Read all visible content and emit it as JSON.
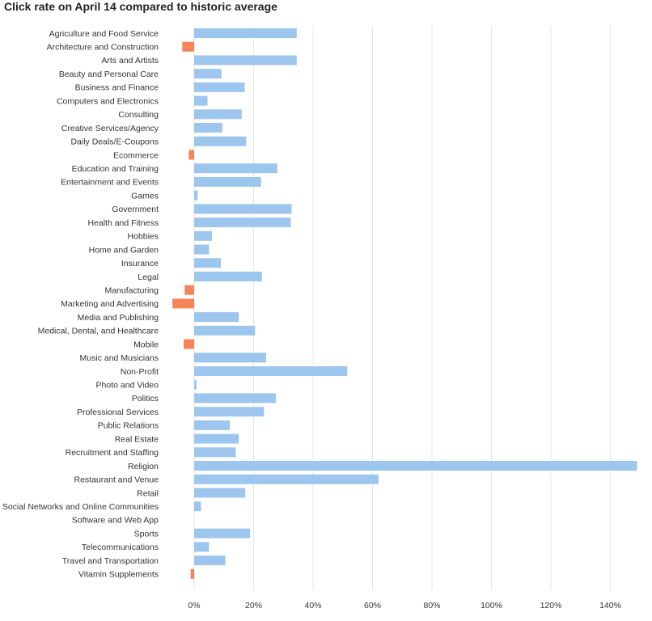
{
  "chart_data": {
    "type": "bar",
    "orientation": "horizontal",
    "title": "Click rate on April 14 compared to historic average",
    "xlabel": "",
    "ylabel": "",
    "xlim": [
      -8,
      149
    ],
    "x_ticks": [
      0,
      20,
      40,
      60,
      80,
      100,
      120,
      140
    ],
    "x_tick_labels": [
      "0%",
      "20%",
      "40%",
      "60%",
      "80%",
      "100%",
      "120%",
      "140%"
    ],
    "grid": "vertical",
    "colors": {
      "positive": "#9dc6ef",
      "negative": "#f5845a",
      "grid": "#e6e6e6"
    },
    "categories": [
      "Agriculture and Food Service",
      "Architecture and Construction",
      "Arts and Artists",
      "Beauty and Personal Care",
      "Business and Finance",
      "Computers and Electronics",
      "Consulting",
      "Creative Services/Agency",
      "Daily Deals/E-Coupons",
      "Ecommerce",
      "Education and Training",
      "Entertainment and Events",
      "Games",
      "Government",
      "Health and Fitness",
      "Hobbies",
      "Home and Garden",
      "Insurance",
      "Legal",
      "Manufacturing",
      "Marketing and Advertising",
      "Media and Publishing",
      "Medical, Dental, and Healthcare",
      "Mobile",
      "Music and Musicians",
      "Non-Profit",
      "Photo and Video",
      "Politics",
      "Professional Services",
      "Public Relations",
      "Real Estate",
      "Recruitment and Staffing",
      "Religion",
      "Restaurant and Venue",
      "Retail",
      "Social Networks and Online Communities",
      "Software and Web App",
      "Sports",
      "Telecommunications",
      "Travel and Transportation",
      "Vitamin Supplements"
    ],
    "values": [
      34.5,
      -4,
      34.5,
      9.2,
      17,
      4.5,
      16,
      9.5,
      17.5,
      -1.8,
      28,
      22.5,
      1.2,
      32.8,
      32.5,
      6,
      5,
      9,
      22.8,
      -3.2,
      -7.3,
      15,
      20.5,
      -3.5,
      24.2,
      51.5,
      0.8,
      27.5,
      23.5,
      12,
      15,
      14,
      149,
      62,
      17.2,
      2.3,
      0,
      18.8,
      5,
      10.5,
      -1.2
    ]
  }
}
